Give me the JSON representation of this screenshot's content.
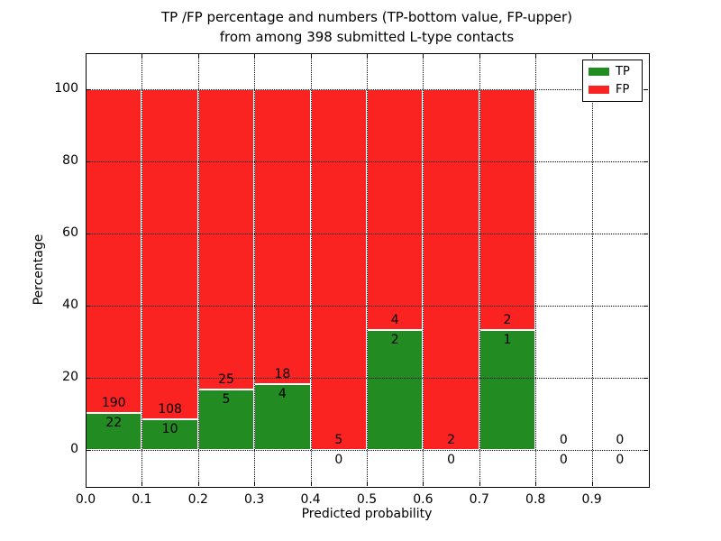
{
  "chart_data": {
    "type": "bar",
    "stacked": true,
    "normalized_to_percent": true,
    "title_line1": "TP /FP percentage and numbers (TP-bottom value, FP-upper)",
    "title_line2": "from among 398 submitted L-type contacts",
    "xlabel": "Predicted probability",
    "ylabel": "Percentage",
    "total_submitted": 398,
    "xlim": [
      0.0,
      1.0
    ],
    "ylim": [
      -10,
      110
    ],
    "bin_width": 0.1,
    "x_ticks": [
      0.0,
      0.1,
      0.2,
      0.3,
      0.4,
      0.5,
      0.6,
      0.7,
      0.8,
      0.9
    ],
    "x_tick_labels": [
      "0.0",
      "0.1",
      "0.2",
      "0.3",
      "0.4",
      "0.5",
      "0.6",
      "0.7",
      "0.8",
      "0.9"
    ],
    "y_ticks": [
      0,
      20,
      40,
      60,
      80,
      100
    ],
    "y_tick_labels": [
      "0",
      "20",
      "40",
      "60",
      "80",
      "100"
    ],
    "grid": "dotted, drawn above bars, at every x and y tick",
    "legend_position": "upper right",
    "categories": [
      "0.0-0.1",
      "0.1-0.2",
      "0.2-0.3",
      "0.3-0.4",
      "0.4-0.5",
      "0.5-0.6",
      "0.6-0.7",
      "0.7-0.8",
      "0.8-0.9",
      "0.9-1.0"
    ],
    "series": [
      {
        "name": "TP",
        "color": "#228b22",
        "counts": [
          22,
          10,
          5,
          4,
          0,
          2,
          0,
          1,
          0,
          0
        ]
      },
      {
        "name": "FP",
        "color": "#fb2222",
        "counts": [
          190,
          108,
          25,
          18,
          5,
          4,
          2,
          2,
          0,
          0
        ]
      }
    ],
    "tp_percent_of_bin": [
      10.4,
      8.5,
      16.7,
      18.2,
      0.0,
      33.3,
      0.0,
      33.3,
      null,
      null
    ],
    "bar_edge_color": "#ffffff",
    "axis_color": "#000000",
    "background_color": "#ffffff"
  }
}
